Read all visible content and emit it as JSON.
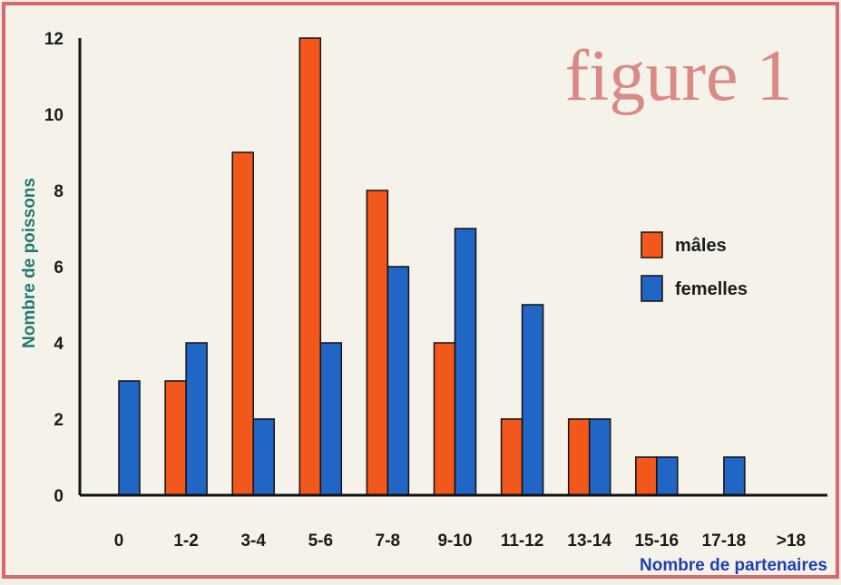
{
  "chart_data": {
    "type": "bar",
    "title": "figure 1",
    "xlabel": "Nombre de partenaires",
    "ylabel": "Nombre de poissons",
    "ylim": [
      0,
      12
    ],
    "yticks": [
      0,
      2,
      4,
      6,
      8,
      10,
      12
    ],
    "categories": [
      "0",
      "1-2",
      "3-4",
      "5-6",
      "7-8",
      "9-10",
      "11-12",
      "13-14",
      "15-16",
      "17-18",
      ">18"
    ],
    "series": [
      {
        "name": "mâles",
        "color": "#f2571c",
        "values": [
          0,
          3,
          9,
          12,
          8,
          4,
          2,
          2,
          1,
          0,
          0
        ]
      },
      {
        "name": "femelles",
        "color": "#2166c4",
        "values": [
          3,
          4,
          2,
          4,
          6,
          7,
          5,
          2,
          1,
          1,
          0
        ]
      }
    ],
    "legend": "right",
    "grid": false
  },
  "colors": {
    "border": "#d46a6a",
    "title": "#d98a84",
    "ylabel": "#1d7a70",
    "xlabel": "#1f3fb0",
    "text": "#1a1a1a"
  }
}
